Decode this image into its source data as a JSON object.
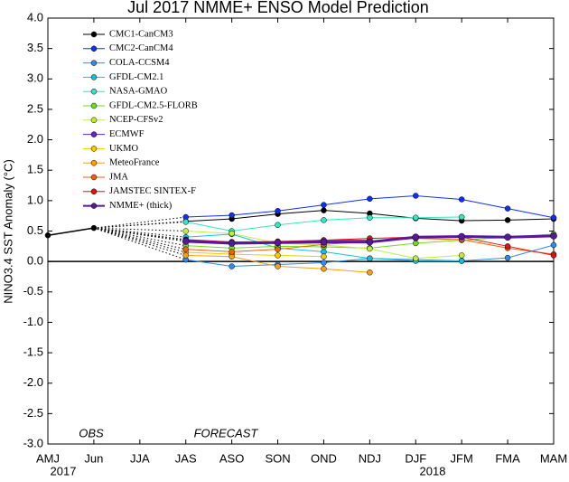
{
  "chart_data": {
    "type": "line",
    "title": "Jul 2017 NMME+ ENSO Model Prediction",
    "y_label": "NINO3.4 SST Anomaly (°C)",
    "annotations": [
      "OBS",
      "FORECAST"
    ],
    "year_labels": [
      "2017",
      "2018"
    ],
    "categories": [
      "AMJ",
      "Jun",
      "JJA",
      "JAS",
      "ASO",
      "SON",
      "OND",
      "NDJ",
      "DJF",
      "JFM",
      "FMA",
      "MAM"
    ],
    "ylim": [
      -3.0,
      4.0
    ],
    "yticks": [
      {
        "value": -3,
        "label": "-3.0"
      },
      {
        "value": -2.5,
        "label": "-2.5"
      },
      {
        "value": -2,
        "label": "-2.0"
      },
      {
        "value": -1.5,
        "label": "-1.5"
      },
      {
        "value": -1,
        "label": "-1.0"
      },
      {
        "value": -0.5,
        "label": "-0.5"
      },
      {
        "value": 0,
        "label": "0.0"
      },
      {
        "value": 0.5,
        "label": "0.5"
      },
      {
        "value": 1,
        "label": "1.0"
      },
      {
        "value": 1.5,
        "label": "1.5"
      },
      {
        "value": 2,
        "label": "2.0"
      },
      {
        "value": 2.5,
        "label": "2.5"
      },
      {
        "value": 3,
        "label": "3.0"
      },
      {
        "value": 3.5,
        "label": "3.5"
      },
      {
        "value": 4,
        "label": "4.0"
      }
    ],
    "observed": {
      "color": "#000000",
      "values": [
        0.43,
        0.55,
        null,
        null,
        null,
        null,
        null,
        null,
        null,
        null,
        null,
        null
      ]
    },
    "series": [
      {
        "name": "CMC1-CanCM3",
        "color": "#000000",
        "values": [
          null,
          null,
          null,
          0.66,
          0.7,
          0.78,
          0.84,
          0.79,
          0.71,
          0.67,
          0.68,
          0.7
        ]
      },
      {
        "name": "CMC2-CanCM4",
        "color": "#1030f0",
        "values": [
          null,
          null,
          null,
          0.73,
          0.76,
          0.83,
          0.93,
          1.03,
          1.08,
          1.02,
          0.87,
          0.72
        ]
      },
      {
        "name": "COLA-CCSM4",
        "color": "#2a8cf0",
        "values": [
          null,
          null,
          null,
          0.03,
          -0.08,
          -0.05,
          -0.02,
          0.05,
          0.03,
          0.01,
          0.06,
          0.27
        ]
      },
      {
        "name": "GFDL-CM2.1",
        "color": "#10c0e0",
        "values": [
          null,
          null,
          null,
          0.4,
          0.45,
          0.22,
          0.16,
          0.05,
          0.01,
          0.01,
          null,
          null
        ]
      },
      {
        "name": "NASA-GMAO",
        "color": "#30e8c0",
        "values": [
          null,
          null,
          null,
          0.65,
          0.5,
          0.6,
          0.68,
          0.72,
          0.72,
          0.73,
          null,
          null
        ]
      },
      {
        "name": "GFDL-CM2.5-FLORB",
        "color": "#70dc20",
        "values": [
          null,
          null,
          null,
          0.26,
          0.22,
          0.25,
          0.24,
          0.22,
          0.3,
          0.35,
          0.4,
          0.45
        ]
      },
      {
        "name": "NCEP-CFSv2",
        "color": "#c0ec40",
        "values": [
          null,
          null,
          null,
          0.5,
          0.46,
          0.3,
          0.27,
          0.21,
          0.05,
          0.1,
          null,
          null
        ]
      },
      {
        "name": "ECMWF",
        "color": "#6a22c0",
        "values": [
          null,
          null,
          null,
          0.36,
          0.32,
          0.32,
          0.35,
          0.35,
          null,
          null,
          null,
          null
        ]
      },
      {
        "name": "UKMO",
        "color": "#f0cc00",
        "values": [
          null,
          null,
          null,
          0.15,
          0.12,
          0.1,
          0.08,
          null,
          null,
          null,
          null,
          null
        ]
      },
      {
        "name": "MeteoFrance",
        "color": "#f8a010",
        "values": [
          null,
          null,
          null,
          0.1,
          0.08,
          -0.08,
          -0.12,
          -0.18,
          null,
          null,
          null,
          null
        ]
      },
      {
        "name": "JMA",
        "color": "#f06010",
        "values": [
          null,
          null,
          null,
          0.2,
          0.16,
          0.2,
          0.28,
          0.33,
          0.38,
          0.36,
          0.22,
          0.12
        ]
      },
      {
        "name": "JAMSTEC SINTEX-F",
        "color": "#e01010",
        "values": [
          null,
          null,
          null,
          0.35,
          0.32,
          0.33,
          0.35,
          0.38,
          0.4,
          0.4,
          0.25,
          0.1
        ]
      },
      {
        "name": "NMME+ (thick)",
        "color": "#58189a",
        "values": [
          null,
          null,
          null,
          0.33,
          0.3,
          0.31,
          0.32,
          0.32,
          0.4,
          0.41,
          0.4,
          0.42
        ]
      }
    ]
  }
}
